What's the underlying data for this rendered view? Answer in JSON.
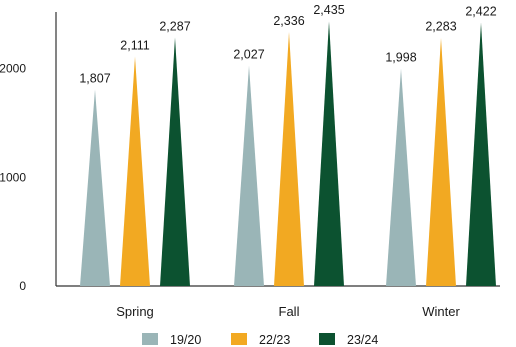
{
  "chart_data": {
    "type": "bar",
    "bar_shape": "triangle",
    "categories": [
      "Spring",
      "Fall",
      "Winter"
    ],
    "series": [
      {
        "name": "19/20",
        "color": "#9ab5b7",
        "values": [
          1807,
          2027,
          1998
        ]
      },
      {
        "name": "22/23",
        "color": "#f2a922",
        "values": [
          2111,
          2336,
          2283
        ]
      },
      {
        "name": "23/24",
        "color": "#0c5230",
        "values": [
          2287,
          2435,
          2422
        ]
      }
    ],
    "value_labels": [
      [
        "1,807",
        "2,111",
        "2,287"
      ],
      [
        "2,027",
        "2,336",
        "2,435"
      ],
      [
        "1,998",
        "2,283",
        "2,422"
      ]
    ],
    "y_ticks": [
      {
        "value": 0,
        "label": "0"
      },
      {
        "value": 1000,
        "label": "1000"
      },
      {
        "value": 2000,
        "label": "2000"
      }
    ],
    "ylim": [
      0,
      2500
    ],
    "grid": false,
    "legend_position": "bottom"
  }
}
